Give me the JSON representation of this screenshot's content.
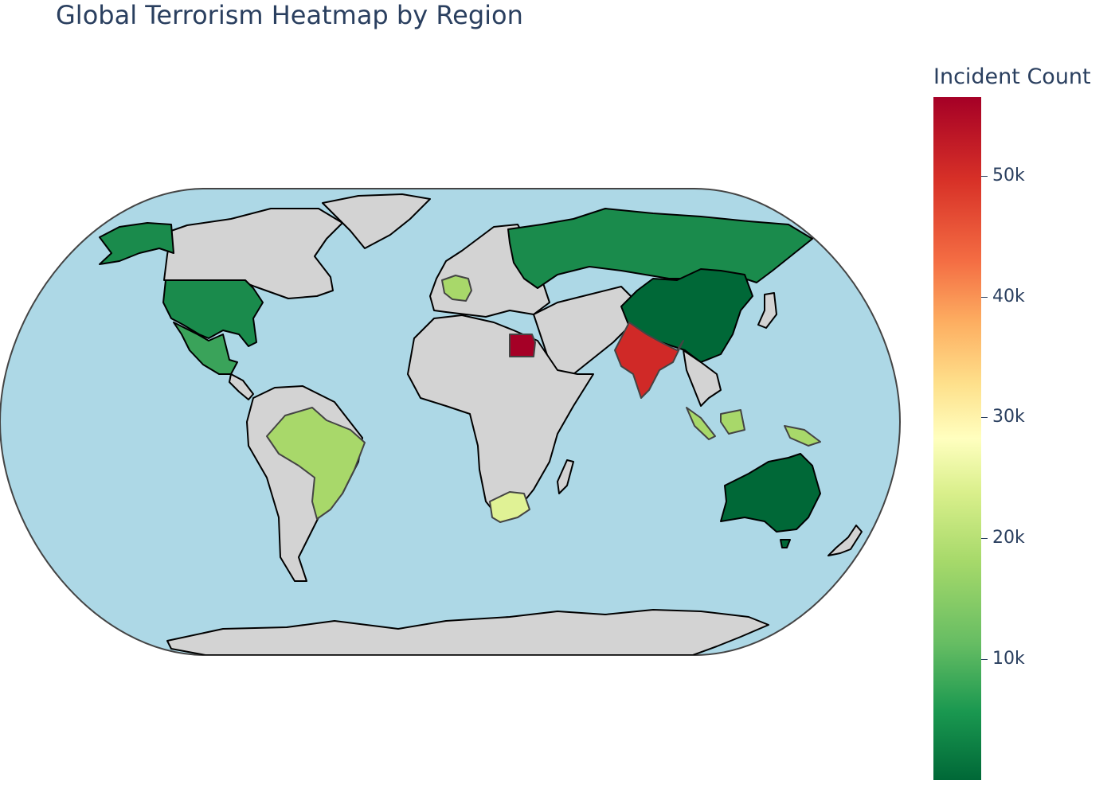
{
  "title": "Global Terrorism Heatmap by Region",
  "colorbar": {
    "title": "Incident Count",
    "colorscale": "RdYlGn_r",
    "range": [
      0,
      56500
    ],
    "ticks": [
      {
        "value": 50000,
        "label": "50k"
      },
      {
        "value": 40000,
        "label": "40k"
      },
      {
        "value": 30000,
        "label": "30k"
      },
      {
        "value": 20000,
        "label": "20k"
      },
      {
        "value": 10000,
        "label": "10k"
      }
    ]
  },
  "colors": {
    "ocean": "#add8e6",
    "land": "#d3d3d3",
    "coastline": "#000000",
    "frame": "#444444"
  },
  "chart_data": {
    "type": "choropleth",
    "projection": "natural earth",
    "metric": "Incident Count",
    "regions": [
      {
        "name": "Egypt",
        "value": 56000
      },
      {
        "name": "India",
        "value": 51500
      },
      {
        "name": "South Africa",
        "value": 24500
      },
      {
        "name": "Brazil",
        "value": 18500
      },
      {
        "name": "France",
        "value": 17000
      },
      {
        "name": "Indonesia",
        "value": 16500
      },
      {
        "name": "Mexico",
        "value": 8500
      },
      {
        "name": "United States",
        "value": 4500
      },
      {
        "name": "Russia",
        "value": 4000
      },
      {
        "name": "China",
        "value": 1200
      },
      {
        "name": "Australia",
        "value": 800
      }
    ]
  }
}
